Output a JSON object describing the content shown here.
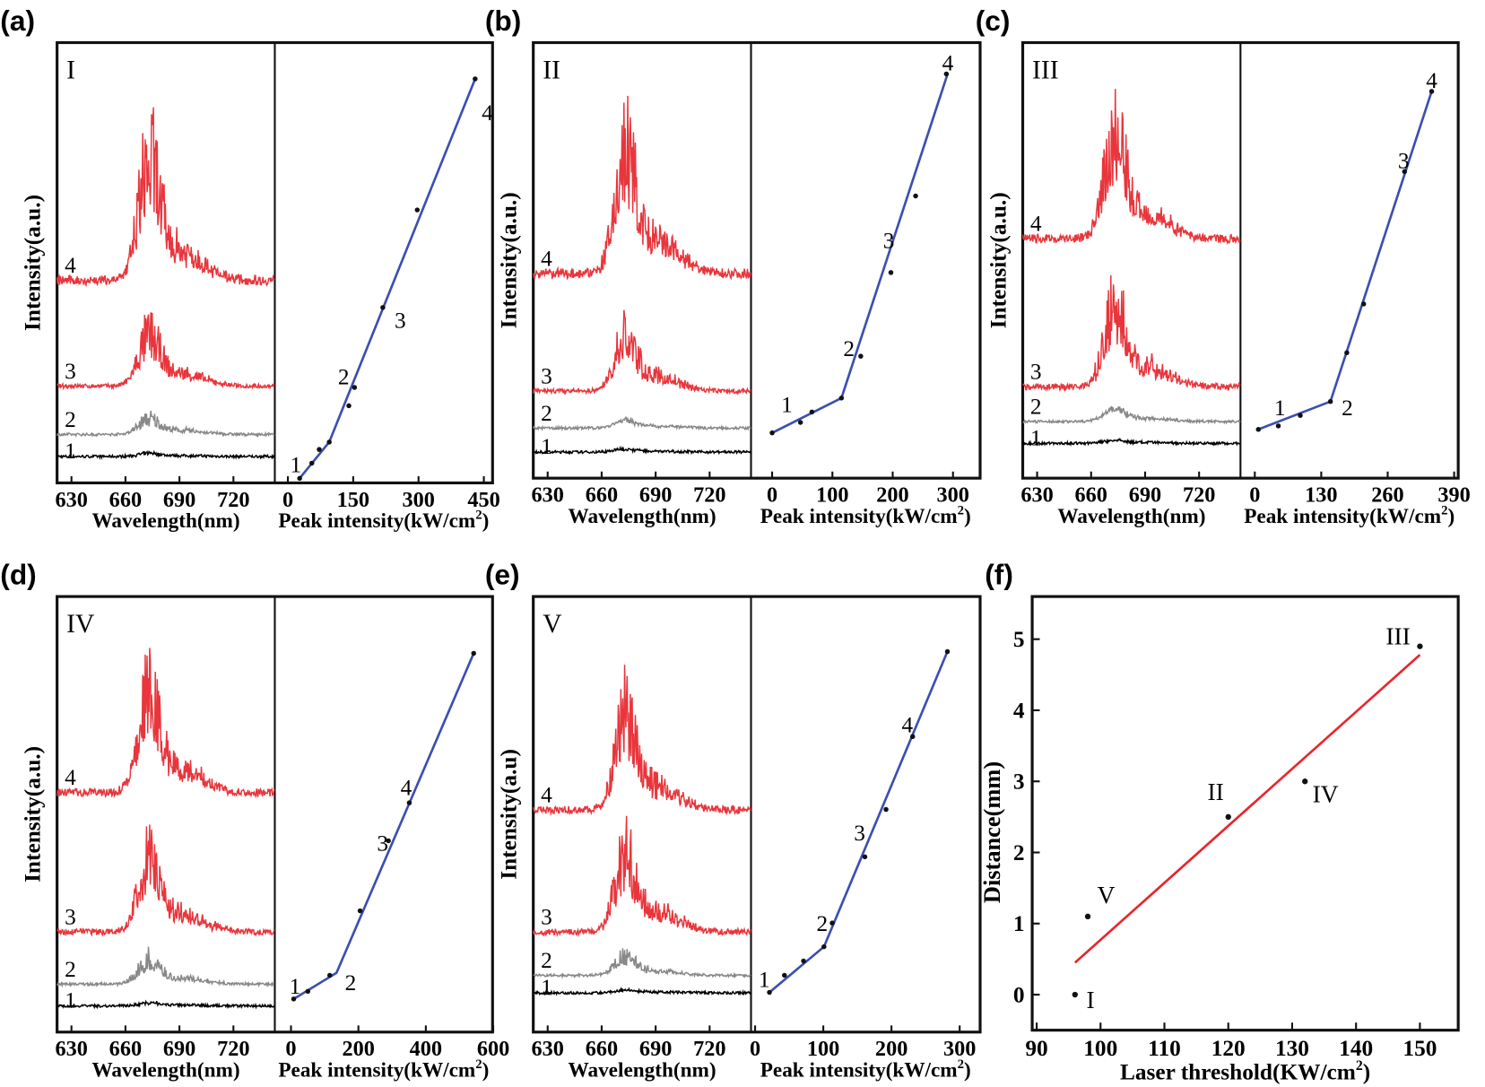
{
  "chart_data": [
    {
      "panel": "(a)",
      "sample": "I",
      "type": "line",
      "spectra": {
        "xlabel": "Wavelength(nm)",
        "ylabel": "Intensity(a.u.)",
        "xticks": [
          630,
          660,
          690,
          720
        ],
        "xlim": [
          622,
          743
        ],
        "ylim": [
          0,
          100
        ],
        "series": [
          {
            "label": "1",
            "color": "#000000",
            "baseline": 6,
            "peak": 7
          },
          {
            "label": "2",
            "color": "#888888",
            "baseline": 11,
            "peak": 17
          },
          {
            "label": "3",
            "color": "#e8363c",
            "baseline": 22,
            "peak": 41
          },
          {
            "label": "4",
            "color": "#e8363c",
            "baseline": 46,
            "peak": 91
          }
        ]
      },
      "threshold": {
        "xlabel": "Peak intensity(kW/cm",
        "xlabel_sup": "2",
        "xlabel_end": ")",
        "xticks": [
          0,
          150,
          300,
          450
        ],
        "xlim": [
          -30,
          470
        ],
        "ylim": [
          0,
          125
        ],
        "points": {
          "x": [
            27,
            55,
            72,
            95,
            140,
            153,
            218,
            297,
            430
          ],
          "y": [
            1.3,
            5.6,
            9.5,
            11.6,
            21.9,
            27.1,
            49.8,
            77.5,
            114.7
          ]
        },
        "fit": {
          "x": [
            27,
            95,
            430
          ],
          "y": [
            1.3,
            11.6,
            114.7
          ]
        },
        "point_labels": [
          {
            "text": "1",
            "x": 5,
            "y": 3
          },
          {
            "text": "2",
            "x": 115,
            "y": 28
          },
          {
            "text": "3",
            "x": 245,
            "y": 44
          },
          {
            "text": "4",
            "x": 445,
            "y": 103
          }
        ]
      }
    },
    {
      "panel": "(b)",
      "sample": "II",
      "type": "line",
      "spectra": {
        "xlabel": "Wavelength(nm)",
        "ylabel": "Intensity(a.u.)",
        "xticks": [
          630,
          660,
          690,
          720
        ],
        "xlim": [
          622,
          743
        ],
        "ylim": [
          0,
          100
        ],
        "series": [
          {
            "label": "1",
            "color": "#000000",
            "baseline": 6,
            "peak": 7
          },
          {
            "label": "2",
            "color": "#888888",
            "baseline": 11.5,
            "peak": 14
          },
          {
            "label": "3",
            "color": "#e8363c",
            "baseline": 20,
            "peak": 41
          },
          {
            "label": "4",
            "color": "#e8363c",
            "baseline": 47,
            "peak": 93
          }
        ]
      },
      "threshold": {
        "xlabel": "Peak intensity(kW/cm",
        "xlabel_sup": "2",
        "xlabel_end": ")",
        "xticks": [
          0,
          100,
          200,
          300
        ],
        "xlim": [
          -35,
          345
        ],
        "ylim": [
          0,
          125
        ],
        "points": {
          "x": [
            0,
            47,
            66,
            115,
            147,
            197,
            238,
            289
          ],
          "y": [
            13,
            16,
            19,
            23,
            35,
            59,
            81,
            116
          ]
        },
        "fit": {
          "x": [
            0,
            115,
            291
          ],
          "y": [
            13,
            23,
            116
          ]
        },
        "point_labels": [
          {
            "text": "1",
            "x": 15,
            "y": 19
          },
          {
            "text": "2",
            "x": 118,
            "y": 35
          },
          {
            "text": "3",
            "x": 184,
            "y": 66
          },
          {
            "text": "4",
            "x": 282,
            "y": 117
          }
        ]
      }
    },
    {
      "panel": "(c)",
      "sample": "III",
      "type": "line",
      "spectra": {
        "xlabel": "Wavelength(nm)",
        "ylabel": "Intensity(a.u.)",
        "xticks": [
          630,
          660,
          690,
          720
        ],
        "xlim": [
          622,
          743
        ],
        "ylim": [
          0,
          100
        ],
        "series": [
          {
            "label": "1",
            "color": "#000000",
            "baseline": 8,
            "peak": 9
          },
          {
            "label": "2",
            "color": "#888888",
            "baseline": 13,
            "peak": 17
          },
          {
            "label": "3",
            "color": "#e8363c",
            "baseline": 21,
            "peak": 51
          },
          {
            "label": "4",
            "color": "#e8363c",
            "baseline": 55,
            "peak": 94
          }
        ]
      },
      "threshold": {
        "xlabel": "Peak intensity(kW/cm",
        "xlabel_sup": "2",
        "xlabel_end": ")",
        "xticks": [
          0,
          130,
          260,
          390
        ],
        "xlim": [
          -28,
          398
        ],
        "ylim": [
          0,
          125
        ],
        "points": {
          "x": [
            7,
            46,
            89,
            148,
            180,
            213,
            293,
            346
          ],
          "y": [
            14,
            15,
            18,
            22,
            36,
            50,
            88,
            111
          ]
        },
        "fit": {
          "x": [
            7,
            148,
            346
          ],
          "y": [
            14,
            22,
            111
          ]
        },
        "point_labels": [
          {
            "text": "1",
            "x": 38,
            "y": 18
          },
          {
            "text": "2",
            "x": 170,
            "y": 18
          },
          {
            "text": "3",
            "x": 280,
            "y": 89
          },
          {
            "text": "4",
            "x": 335,
            "y": 112
          }
        ]
      }
    },
    {
      "panel": "(d)",
      "sample": "IV",
      "type": "line",
      "spectra": {
        "xlabel": "Wavelength(nm)",
        "ylabel": "Intensity(a.u.)",
        "xticks": [
          630,
          660,
          690,
          720
        ],
        "xlim": [
          622,
          743
        ],
        "ylim": [
          0,
          100
        ],
        "series": [
          {
            "label": "1",
            "color": "#000000",
            "baseline": 6,
            "peak": 7
          },
          {
            "label": "2",
            "color": "#888888",
            "baseline": 11,
            "peak": 20
          },
          {
            "label": "3",
            "color": "#e8363c",
            "baseline": 23,
            "peak": 51
          },
          {
            "label": "4",
            "color": "#e8363c",
            "baseline": 55,
            "peak": 92
          }
        ]
      },
      "threshold": {
        "xlabel": "Peak intensity(kW/cm",
        "xlabel_sup": "2",
        "xlabel_end": ")",
        "xticks": [
          0,
          200,
          400,
          600
        ],
        "xlim": [
          -48,
          598
        ],
        "ylim": [
          0,
          125
        ],
        "points": {
          "x": [
            8,
            50,
            115,
            205,
            289,
            351,
            542
          ],
          "y": [
            9.5,
            11.7,
            16.3,
            34.8,
            54.9,
            65.8,
            108.7
          ]
        },
        "fit": {
          "x": [
            8,
            135,
            542
          ],
          "y": [
            9.5,
            17,
            108.7
          ]
        },
        "point_labels": [
          {
            "text": "1",
            "x": -5,
            "y": 11
          },
          {
            "text": "2",
            "x": 160,
            "y": 12
          },
          {
            "text": "3",
            "x": 255,
            "y": 52
          },
          {
            "text": "4",
            "x": 325,
            "y": 68
          }
        ]
      }
    },
    {
      "panel": "(e)",
      "sample": "V",
      "type": "line",
      "spectra": {
        "xlabel": "Wavelength(nm)",
        "ylabel": "Intensity(a.u)",
        "xticks": [
          630,
          660,
          690,
          720
        ],
        "xlim": [
          622,
          743
        ],
        "ylim": [
          0,
          100
        ],
        "series": [
          {
            "label": "1",
            "color": "#000000",
            "baseline": 9,
            "peak": 10
          },
          {
            "label": "2",
            "color": "#888888",
            "baseline": 13,
            "peak": 20
          },
          {
            "label": "3",
            "color": "#e8363c",
            "baseline": 23,
            "peak": 51
          },
          {
            "label": "4",
            "color": "#e8363c",
            "baseline": 51,
            "peak": 86
          }
        ]
      },
      "threshold": {
        "xlabel": "Peak intensity(kW/cm",
        "xlabel_sup": "2",
        "xlabel_end": ")",
        "xticks": [
          0,
          100,
          200,
          300
        ],
        "xlim": [
          -6,
          330
        ],
        "ylim": [
          0,
          125
        ],
        "points": {
          "x": [
            21,
            43,
            71,
            101,
            113,
            161,
            192,
            231,
            282
          ],
          "y": [
            11.4,
            16.3,
            20.4,
            24.5,
            31.3,
            50.3,
            63.9,
            84.8,
            109.2
          ]
        },
        "fit": {
          "x": [
            21,
            101,
            282
          ],
          "y": [
            11.4,
            24.5,
            109.2
          ]
        },
        "point_labels": [
          {
            "text": "1",
            "x": 5,
            "y": 13
          },
          {
            "text": "2",
            "x": 90,
            "y": 29
          },
          {
            "text": "3",
            "x": 145,
            "y": 55
          },
          {
            "text": "4",
            "x": 215,
            "y": 86
          }
        ]
      }
    },
    {
      "panel": "(f)",
      "type": "scatter",
      "xlabel": "Laser threshold(KW/cm",
      "xlabel_sup": "2",
      "xlabel_end": ")",
      "ylabel": "Distance(mm)",
      "xticks": [
        90,
        100,
        110,
        120,
        130,
        140,
        150
      ],
      "yticks": [
        0,
        1,
        2,
        3,
        4,
        5
      ],
      "xlim": [
        89.3,
        156
      ],
      "ylim": [
        -0.5,
        5.6
      ],
      "points": [
        {
          "label": "I",
          "x": 96,
          "y": 0
        },
        {
          "label": "V",
          "x": 98,
          "y": 1.1
        },
        {
          "label": "II",
          "x": 120,
          "y": 2.5
        },
        {
          "label": "IV",
          "x": 132,
          "y": 3.0
        },
        {
          "label": "III",
          "x": 150,
          "y": 4.9
        }
      ],
      "fit": {
        "x": [
          96,
          150
        ],
        "y": [
          0.45,
          4.78
        ],
        "color": "#e8262c"
      }
    }
  ],
  "colors": {
    "fit_line": "#3a4fb0",
    "frame": "#111111"
  }
}
